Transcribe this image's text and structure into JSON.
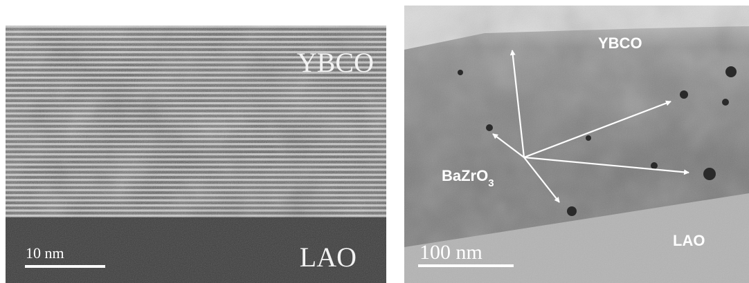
{
  "left_panel": {
    "top_label": "YBCO",
    "bottom_label": "LAO",
    "scale_bar": "10 nm"
  },
  "right_panel": {
    "top_label": "YBCO",
    "bottom_label": "LAO",
    "scale_bar": "100 nm",
    "particle_label": {
      "text": "BaZrO",
      "subscript": "3"
    }
  }
}
